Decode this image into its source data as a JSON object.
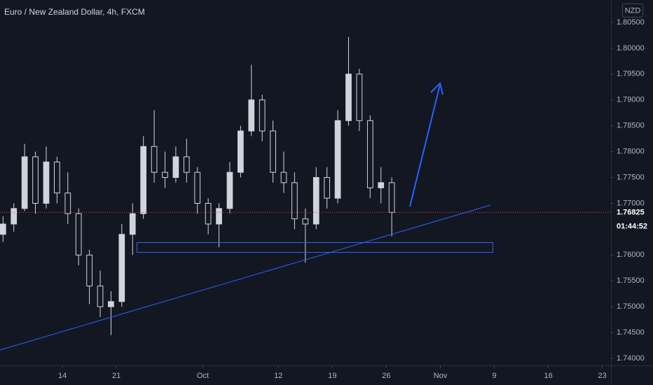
{
  "chart_data": {
    "type": "candlestick",
    "title": "Euro / New Zealand Dollar, 4h, FXCM",
    "currency": "NZD",
    "countdown": "01:44:52",
    "last_price": 1.76825,
    "up_color": "#d1d4dc",
    "down_color": "#131722",
    "open": [
      1.764,
      1.766,
      1.769,
      1.779,
      1.77,
      1.778,
      1.772,
      1.768,
      1.76,
      1.754,
      1.75,
      1.751,
      1.764,
      1.768,
      1.781,
      1.776,
      1.775,
      1.779,
      1.776,
      1.77,
      1.766,
      1.769,
      1.776,
      1.784,
      1.79,
      1.784,
      1.776,
      1.774,
      1.767,
      1.766,
      1.775,
      1.771,
      1.786,
      1.795,
      1.786,
      1.773,
      1.774
    ],
    "high": [
      1.7675,
      1.77,
      1.7815,
      1.78,
      1.781,
      1.779,
      1.776,
      1.769,
      1.761,
      1.757,
      1.753,
      1.766,
      1.77,
      1.783,
      1.788,
      1.78,
      1.781,
      1.7825,
      1.777,
      1.771,
      1.77,
      1.778,
      1.785,
      1.7968,
      1.791,
      1.786,
      1.78,
      1.776,
      1.769,
      1.777,
      1.777,
      1.788,
      1.8022,
      1.796,
      1.787,
      1.777,
      1.775
    ],
    "low": [
      1.7625,
      1.7645,
      1.7685,
      1.768,
      1.769,
      1.77,
      1.766,
      1.758,
      1.7505,
      1.748,
      1.7445,
      1.75,
      1.76,
      1.767,
      1.774,
      1.773,
      1.774,
      1.774,
      1.768,
      1.764,
      1.7615,
      1.768,
      1.775,
      1.783,
      1.782,
      1.774,
      1.772,
      1.765,
      1.7585,
      1.765,
      1.769,
      1.77,
      1.785,
      1.784,
      1.771,
      1.77,
      1.7636
    ],
    "close": [
      1.766,
      1.769,
      1.779,
      1.77,
      1.778,
      1.772,
      1.768,
      1.76,
      1.754,
      1.75,
      1.751,
      1.764,
      1.768,
      1.781,
      1.776,
      1.775,
      1.779,
      1.776,
      1.77,
      1.766,
      1.769,
      1.776,
      1.784,
      1.79,
      1.784,
      1.776,
      1.774,
      1.767,
      1.766,
      1.775,
      1.771,
      1.786,
      1.795,
      1.786,
      1.773,
      1.774,
      1.76825
    ],
    "xlim": [
      0.22,
      56.8
    ],
    "xticks": [
      {
        "value": 6,
        "label": "14"
      },
      {
        "value": 11,
        "label": "21"
      },
      {
        "value": 19,
        "label": "Oct"
      },
      {
        "value": 26,
        "label": "12"
      },
      {
        "value": 31,
        "label": "19"
      },
      {
        "value": 36,
        "label": "26"
      },
      {
        "value": 41,
        "label": "Nov"
      },
      {
        "value": 46,
        "label": "9"
      },
      {
        "value": 51,
        "label": "16"
      },
      {
        "value": 56,
        "label": "23"
      }
    ],
    "ylim": [
      1.73865,
      1.80933
    ],
    "yticks": [
      {
        "value": 1.805,
        "label": "1.80500"
      },
      {
        "value": 1.8,
        "label": "1.80000"
      },
      {
        "value": 1.795,
        "label": "1.79500"
      },
      {
        "value": 1.79,
        "label": "1.79000"
      },
      {
        "value": 1.785,
        "label": "1.78500"
      },
      {
        "value": 1.78,
        "label": "1.78000"
      },
      {
        "value": 1.775,
        "label": "1.77500"
      },
      {
        "value": 1.77,
        "label": "1.77000"
      },
      {
        "value": 1.76,
        "label": "1.76000"
      },
      {
        "value": 1.755,
        "label": "1.75500"
      },
      {
        "value": 1.75,
        "label": "1.75000"
      },
      {
        "value": 1.745,
        "label": "1.74500"
      },
      {
        "value": 1.74,
        "label": "1.74000"
      }
    ]
  }
}
